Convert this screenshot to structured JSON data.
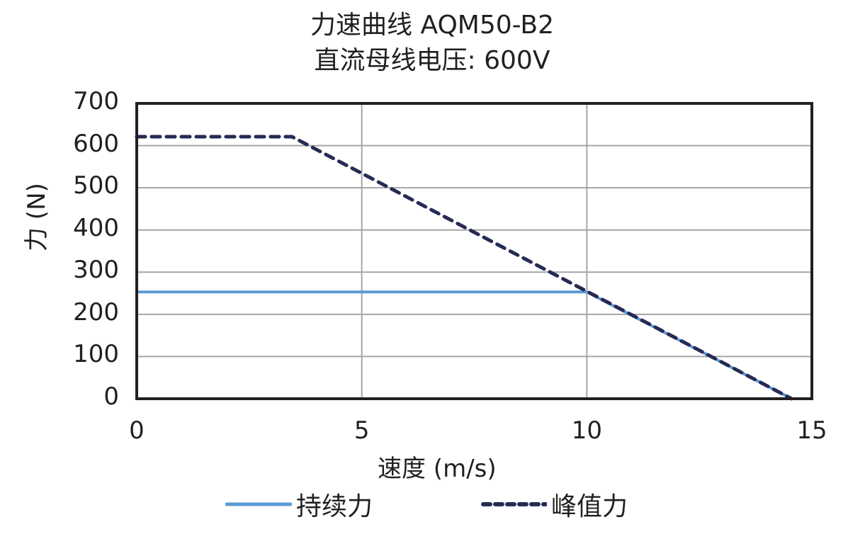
{
  "chart_data": {
    "type": "line",
    "title": "力速曲线 AQM50-B2",
    "subtitle": "直流母线电压: 600V",
    "xlabel": "速度 (m/s)",
    "ylabel": "力 (N)",
    "xlim": [
      0,
      15
    ],
    "ylim": [
      0,
      700
    ],
    "x_ticks": [
      "0",
      "5",
      "10",
      "15"
    ],
    "y_ticks": [
      "0",
      "100",
      "200",
      "300",
      "400",
      "500",
      "600",
      "700"
    ],
    "grid": true,
    "legend_position": "bottom",
    "series": [
      {
        "name": "持续力",
        "color": "#5b9bd5",
        "style": "solid",
        "points": [
          [
            0,
            253
          ],
          [
            10.0,
            253
          ],
          [
            14.55,
            0
          ]
        ]
      },
      {
        "name": "峰值力",
        "color": "#262b55",
        "style": "dashed",
        "points": [
          [
            0,
            621
          ],
          [
            3.45,
            621
          ],
          [
            14.55,
            0
          ]
        ]
      }
    ]
  },
  "legend": {
    "continuous_label": "持续力",
    "peak_label": "峰值力"
  }
}
